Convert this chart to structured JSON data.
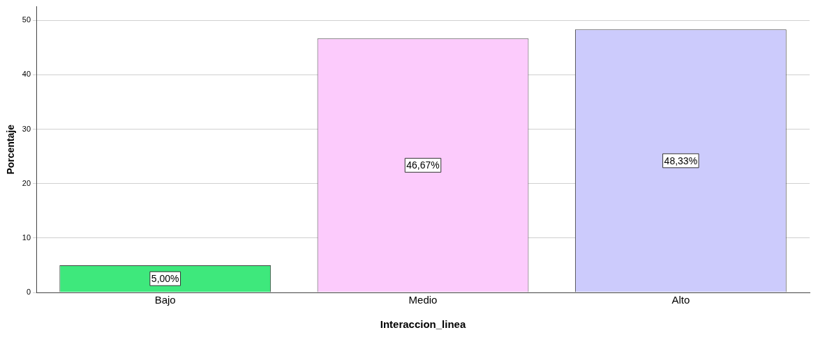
{
  "chart_data": {
    "type": "bar",
    "xlabel": "Interaccion_linea",
    "ylabel": "Porcentaje",
    "categories": [
      "Bajo",
      "Medio",
      "Alto"
    ],
    "values": [
      5,
      46.67,
      48.33
    ],
    "colors": [
      "#3ee87c",
      "#fccbfc",
      "#cccbfc"
    ],
    "value_labels": [
      "5,00%",
      "46,67%",
      "48,33%"
    ],
    "ylim": [
      0,
      52.5
    ],
    "yticks": [
      0,
      10,
      20,
      30,
      40,
      50
    ],
    "grid": "y",
    "legend": false
  }
}
